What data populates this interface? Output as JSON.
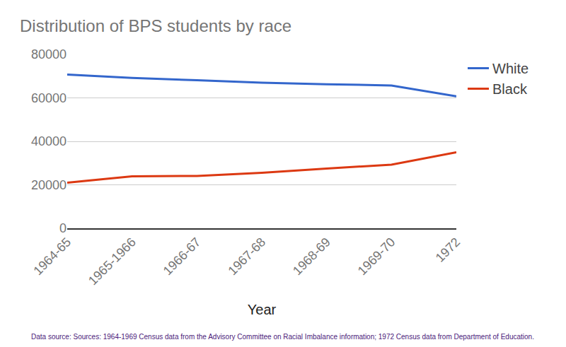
{
  "chart_data": {
    "type": "line",
    "title": "Distribution of BPS students by race",
    "x_label": "Year",
    "categories": [
      "1964-65",
      "1965-1966",
      "1966-67",
      "1967-68",
      "1968-69",
      "1969-70",
      "1972"
    ],
    "series": [
      {
        "name": "White",
        "color": "#3366cc",
        "values": [
          70700,
          69200,
          68100,
          67000,
          66300,
          65700,
          60700
        ]
      },
      {
        "name": "Black",
        "color": "#dc3912",
        "values": [
          21000,
          23900,
          24100,
          25500,
          27500,
          29300,
          35000
        ]
      }
    ],
    "ylim": [
      0,
      80000
    ],
    "yticks": [
      0,
      20000,
      40000,
      60000,
      80000
    ],
    "grid": true,
    "legend": "top-right",
    "annotations": [
      "Data source: Sources: 1964-1969 Census data from the Advisory Committee on Racial Imbalance information; 1972 Census data from Department of Education."
    ]
  }
}
